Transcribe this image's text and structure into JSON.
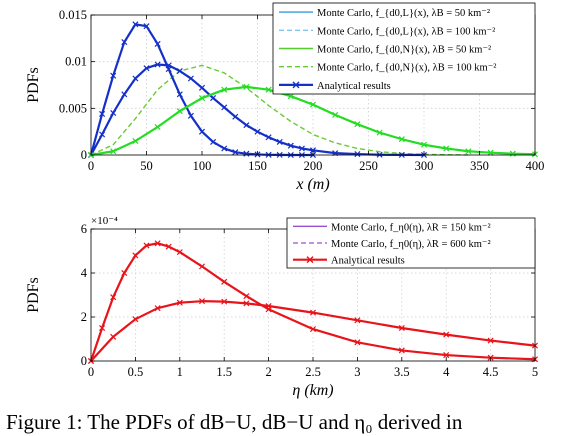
{
  "caption": "Figure 1: The PDFs of dB−U, dB−U and η₀ derived in",
  "chart_data": [
    {
      "type": "line",
      "xlabel": "x (m)",
      "ylabel": "PDFs",
      "xlim": [
        0,
        400
      ],
      "ylim": [
        0,
        0.015
      ],
      "xticks": [
        "0",
        "50",
        "100",
        "150",
        "200",
        "250",
        "300",
        "350",
        "400"
      ],
      "yticks": [
        "0",
        "0.005",
        "0.01",
        "0.015"
      ],
      "grid": true,
      "legend_position": "top-right",
      "series": [
        {
          "name": "Monte Carlo, f_{d0,L}(x), λB = 50 km⁻²",
          "color": "#3a9ad9",
          "style": "solid",
          "x": [
            0,
            10,
            20,
            30,
            40,
            50,
            60,
            70,
            80,
            90,
            100,
            110,
            120,
            130,
            140,
            150,
            160,
            170,
            180,
            190,
            200,
            220,
            240,
            260,
            280,
            300
          ],
          "y": [
            0,
            0.0022,
            0.0045,
            0.0065,
            0.0082,
            0.0093,
            0.0097,
            0.0096,
            0.009,
            0.0082,
            0.0072,
            0.0061,
            0.0051,
            0.0041,
            0.0032,
            0.0025,
            0.0019,
            0.0014,
            0.001,
            0.0007,
            0.0005,
            0.0002,
            0.0001,
            3e-05,
            1e-05,
            0
          ]
        },
        {
          "name": "Monte Carlo, f_{d0,L}(x), λB = 100 km⁻²",
          "color": "#7fc7f0",
          "style": "dashed",
          "x": [
            0,
            10,
            20,
            30,
            40,
            50,
            60,
            70,
            80,
            90,
            100,
            110,
            120,
            130,
            140,
            150,
            160,
            170,
            180,
            190,
            200
          ],
          "y": [
            0,
            0.0044,
            0.0085,
            0.0121,
            0.014,
            0.0138,
            0.0119,
            0.0092,
            0.0065,
            0.0042,
            0.0025,
            0.0014,
            0.0007,
            0.0003,
            0.00014,
            6e-05,
            2e-05,
            1e-05,
            0,
            0,
            0
          ]
        },
        {
          "name": "Monte Carlo, f_{d0,N}(x), λB = 50 km⁻²",
          "color": "#55cc2e",
          "style": "solid",
          "x": [
            0,
            20,
            40,
            60,
            80,
            100,
            120,
            140,
            160,
            180,
            200,
            220,
            240,
            260,
            280,
            300,
            320,
            340,
            360,
            380,
            400
          ],
          "y": [
            0,
            0.0004,
            0.0015,
            0.003,
            0.0047,
            0.0061,
            0.007,
            0.0073,
            0.007,
            0.0063,
            0.0054,
            0.0043,
            0.0033,
            0.0024,
            0.0017,
            0.0011,
            0.0007,
            0.0004,
            0.00025,
            0.00014,
            8e-05
          ]
        },
        {
          "name": "Monte Carlo, f_{d0,N}(x), λB = 100 km⁻²",
          "color": "#66cc33",
          "style": "dashed",
          "x": [
            0,
            20,
            40,
            60,
            80,
            100,
            120,
            140,
            160,
            180,
            200,
            220,
            240,
            260,
            280,
            300,
            320,
            340
          ],
          "y": [
            0,
            0.0011,
            0.0039,
            0.007,
            0.009,
            0.0096,
            0.0088,
            0.0072,
            0.0053,
            0.0036,
            0.0022,
            0.0013,
            0.0007,
            0.00035,
            0.00016,
            7e-05,
            3e-05,
            1e-05
          ]
        },
        {
          "name": "Analytical results",
          "color": "#1530c8",
          "style": "solid-marker-x",
          "x": [
            0,
            10,
            20,
            30,
            40,
            50,
            60,
            70,
            80,
            90,
            100,
            110,
            120,
            130,
            140,
            150,
            160,
            170,
            180,
            190,
            200,
            220,
            240,
            260,
            280,
            300
          ],
          "y": [
            0,
            0.0022,
            0.0045,
            0.0065,
            0.0082,
            0.0093,
            0.0097,
            0.0096,
            0.009,
            0.0082,
            0.0072,
            0.0061,
            0.0051,
            0.0041,
            0.0032,
            0.0025,
            0.0019,
            0.0014,
            0.001,
            0.0007,
            0.0005,
            0.0002,
            0.0001,
            3e-05,
            1e-05,
            0
          ]
        }
      ],
      "analytical_overlays": [
        {
          "color": "#1530c8",
          "x": [
            0,
            10,
            20,
            30,
            40,
            50,
            60,
            70,
            80,
            90,
            100,
            110,
            120,
            130,
            140,
            150,
            160,
            170,
            180,
            190,
            200
          ],
          "y": [
            0,
            0.0044,
            0.0085,
            0.0121,
            0.014,
            0.0138,
            0.0119,
            0.0092,
            0.0065,
            0.0042,
            0.0025,
            0.0014,
            0.0007,
            0.0003,
            0.00014,
            6e-05,
            2e-05,
            1e-05,
            0,
            0,
            0
          ]
        },
        {
          "color": "#22dd22",
          "x": [
            0,
            20,
            40,
            60,
            80,
            100,
            120,
            140,
            160,
            180,
            200,
            220,
            240,
            260,
            280,
            300,
            320,
            340,
            360,
            380,
            400
          ],
          "y": [
            0,
            0.0004,
            0.0015,
            0.003,
            0.0047,
            0.0061,
            0.007,
            0.0073,
            0.007,
            0.0063,
            0.0054,
            0.0043,
            0.0033,
            0.0024,
            0.0017,
            0.0011,
            0.0007,
            0.0004,
            0.00025,
            0.00014,
            8e-05
          ]
        }
      ]
    },
    {
      "type": "line",
      "xlabel": "η (km)",
      "ylabel": "PDFs",
      "axis_multiplier": "×10⁻⁴",
      "xlim": [
        0,
        5
      ],
      "ylim": [
        0,
        6
      ],
      "xticks": [
        "0",
        "0.5",
        "1",
        "1.5",
        "2",
        "2.5",
        "3",
        "3.5",
        "4",
        "4.5",
        "5"
      ],
      "yticks": [
        "0",
        "2",
        "4",
        "6"
      ],
      "grid": true,
      "legend_position": "top-right",
      "series": [
        {
          "name": "Monte Carlo, f_η0(η), λR = 150 km⁻²",
          "color": "#9b4fd0",
          "style": "solid",
          "x": [
            0,
            0.25,
            0.5,
            0.75,
            1.0,
            1.25,
            1.5,
            1.75,
            2.0,
            2.5,
            3.0,
            3.5,
            4.0,
            4.5,
            5.0
          ],
          "y": [
            0,
            1.1,
            1.9,
            2.4,
            2.65,
            2.72,
            2.7,
            2.62,
            2.5,
            2.2,
            1.85,
            1.5,
            1.2,
            0.93,
            0.7
          ]
        },
        {
          "name": "Monte Carlo, f_η0(η), λR = 600 km⁻²",
          "color": "#b36ad8",
          "style": "dashed",
          "x": [
            0,
            0.125,
            0.25,
            0.375,
            0.5,
            0.625,
            0.75,
            0.875,
            1.0,
            1.25,
            1.5,
            1.75,
            2.0,
            2.5,
            3.0,
            3.5,
            4.0,
            4.5,
            5.0
          ],
          "y": [
            0,
            1.5,
            2.9,
            4.0,
            4.8,
            5.25,
            5.35,
            5.2,
            4.95,
            4.3,
            3.6,
            2.95,
            2.35,
            1.45,
            0.85,
            0.48,
            0.27,
            0.15,
            0.08
          ]
        },
        {
          "name": "Analytical results",
          "color": "#e8141a",
          "style": "solid-marker-x",
          "x": [
            0,
            0.25,
            0.5,
            0.75,
            1.0,
            1.25,
            1.5,
            1.75,
            2.0,
            2.5,
            3.0,
            3.5,
            4.0,
            4.5,
            5.0
          ],
          "y": [
            0,
            1.1,
            1.9,
            2.4,
            2.65,
            2.72,
            2.7,
            2.62,
            2.5,
            2.2,
            1.85,
            1.5,
            1.2,
            0.93,
            0.7
          ]
        }
      ],
      "analytical_overlays": [
        {
          "color": "#e8141a",
          "x": [
            0,
            0.125,
            0.25,
            0.375,
            0.5,
            0.625,
            0.75,
            0.875,
            1.0,
            1.25,
            1.5,
            1.75,
            2.0,
            2.5,
            3.0,
            3.5,
            4.0,
            4.5,
            5.0
          ],
          "y": [
            0,
            1.5,
            2.9,
            4.0,
            4.8,
            5.25,
            5.35,
            5.2,
            4.95,
            4.3,
            3.6,
            2.95,
            2.35,
            1.45,
            0.85,
            0.48,
            0.27,
            0.15,
            0.08
          ]
        }
      ]
    }
  ]
}
